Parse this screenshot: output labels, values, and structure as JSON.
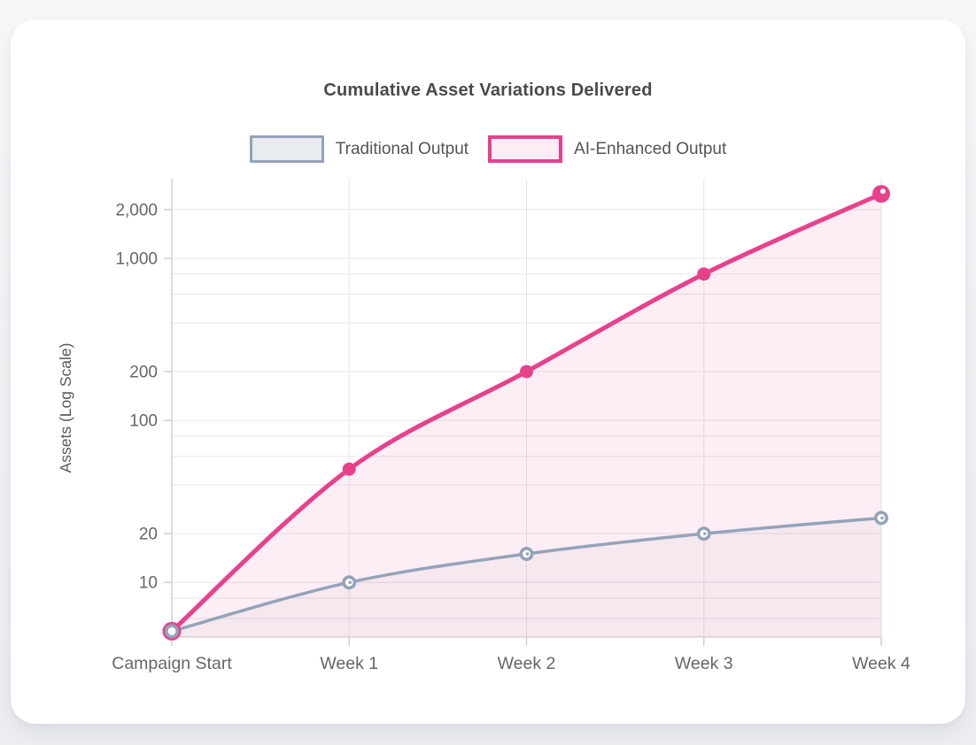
{
  "chart_data": {
    "type": "line",
    "title": "Cumulative Asset Variations Delivered",
    "categories": [
      "Campaign Start",
      "Week 1",
      "Week 2",
      "Week 3",
      "Week 4"
    ],
    "series": [
      {
        "name": "Traditional Output",
        "values": [
          5,
          10,
          15,
          20,
          25
        ],
        "color": "#94a3b8",
        "fill": "rgba(148,163,184,0.08)",
        "line_width": 3.5,
        "point_style": "ring"
      },
      {
        "name": "AI-Enhanced Output",
        "values": [
          5,
          50,
          200,
          800,
          2500
        ],
        "color": "#e8418c",
        "fill": "rgba(232,65,143,0.09)",
        "line_width": 5,
        "point_style": "solid"
      }
    ],
    "xlabel": "",
    "ylabel": "Assets (Log Scale)",
    "yscale": "log",
    "ylim": [
      4.6,
      3100
    ],
    "grid": true,
    "legend_position": "top",
    "y_tick_labels": [
      {
        "value": 10,
        "label": "10"
      },
      {
        "value": 20,
        "label": "20"
      },
      {
        "value": 100,
        "label": "100"
      },
      {
        "value": 200,
        "label": "200"
      },
      {
        "value": 1000,
        "label": "1,000"
      },
      {
        "value": 2000,
        "label": "2,000"
      }
    ],
    "y_gridline_values": [
      6,
      8,
      10,
      20,
      40,
      60,
      80,
      100,
      200,
      400,
      600,
      800,
      1000,
      2000
    ]
  },
  "colors": {
    "page_bg_top": "#f7f8fa",
    "page_bg_bottom": "#eceef1",
    "card_bg": "#ffffff",
    "grid_line": "#e6e6e6",
    "axis_line": "#d2d2d2",
    "tick_mark": "#d0d0d0",
    "tick_text": "#666666",
    "title_text": "#4a4a4a",
    "legend_text": "#545454",
    "axis_title_text": "#5a5a5a",
    "point_center": "#ffffff"
  }
}
